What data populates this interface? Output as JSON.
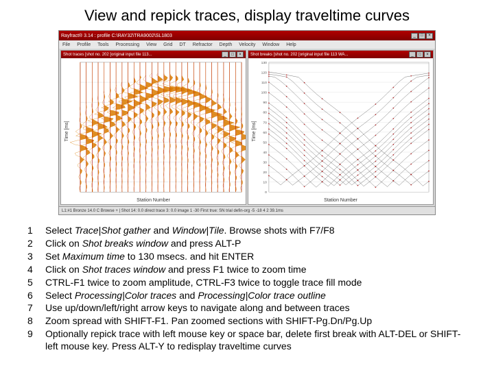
{
  "title": "View and repick traces, display traveltime curves",
  "app_window": {
    "titlebar": "Rayfract® 3.14 : profile C:\\RAY32\\TRA9002\\SL1803",
    "menubar": [
      "File",
      "Profile",
      "Tools",
      "Processing",
      "View",
      "Grid",
      "DT",
      "Refractor",
      "Depth",
      "Velocity",
      "Window",
      "Help"
    ],
    "statusbar": "L1:#1 Bronze   14.0 C Browse + | Shot 14:   0.0 direct trace 3:  0.0 image 1     -30 First true:  SN trial defin-org -5 -18  4 2 39.1ms"
  },
  "left_panel": {
    "title": "Shot traces [shot no. 202 [original input file 113...",
    "x_label": "Station Number",
    "y_label": "Time [ms]",
    "trace_color": "#d97a00",
    "pick_color": "#b00000",
    "grid_color": "#c0c0c0",
    "background": "#ffffff",
    "num_traces": 28,
    "time_range": [
      0,
      130
    ],
    "amplitude_envelope": [
      [
        0,
        0.02
      ],
      [
        10,
        0.03
      ],
      [
        20,
        0.06
      ],
      [
        25,
        0.1
      ],
      [
        30,
        0.25
      ],
      [
        35,
        0.6
      ],
      [
        40,
        0.95
      ],
      [
        45,
        0.9
      ],
      [
        50,
        0.7
      ],
      [
        55,
        0.5
      ],
      [
        60,
        0.35
      ],
      [
        70,
        0.2
      ],
      [
        80,
        0.12
      ],
      [
        90,
        0.08
      ],
      [
        110,
        0.04
      ],
      [
        130,
        0.02
      ]
    ],
    "first_break_ms": [
      72,
      66,
      60,
      54,
      48,
      43,
      38,
      34,
      30,
      27,
      24,
      22,
      20,
      19,
      19,
      20,
      22,
      24,
      27,
      30,
      34,
      38,
      43,
      48,
      54,
      60,
      66,
      72
    ]
  },
  "right_panel": {
    "title": "Shot breaks [shot no. 202 [original input file 113 WA...",
    "x_label": "Station Number",
    "y_label": "Time [ms]",
    "curve_color": "#333333",
    "pick_color": "#b00000",
    "grid_color": "#d0d0d0",
    "background": "#ffffff",
    "ylim": [
      0,
      130
    ],
    "ytick_step": 10,
    "num_curves": 16,
    "curve_apexes_x": [
      2,
      4,
      6,
      8,
      10,
      11,
      12,
      13,
      14,
      15,
      16,
      18,
      20,
      22,
      24,
      26
    ],
    "curve_apex_depth": 115,
    "curve_spread": 28
  },
  "instructions": [
    {
      "n": "1",
      "html": "Select <i>Trace|Shot gather</i> and <i>Window|Tile</i>. Browse shots with F7/F8"
    },
    {
      "n": "2",
      "html": "Click on <i>Shot breaks window</i> and press ALT-P"
    },
    {
      "n": "3",
      "html": "Set <i>Maximum time</i> to 130 msecs. and hit ENTER"
    },
    {
      "n": "4",
      "html": "Click on <i>Shot traces window</i> and press F1 twice to zoom time"
    },
    {
      "n": "5",
      "html": "CTRL-F1 twice to zoom amplitude, CTRL-F3 twice to toggle trace fill mode"
    },
    {
      "n": "6",
      "html": "Select <i>Processing|Color traces</i> and <i>Processing|Color trace outline</i>"
    },
    {
      "n": "7",
      "html": "Use up/down/left/right arrow keys to navigate along and between traces"
    },
    {
      "n": "8",
      "html": "Zoom spread with SHIFT-F1. Pan zoomed sections with SHIFT-Pg.Dn/Pg.Up"
    },
    {
      "n": "9",
      "html": "Optionally repick trace with left mouse key or space bar, delete first break with ALT-DEL or  SHIFT-left mouse key. Press ALT-Y to redisplay traveltime curves"
    }
  ]
}
